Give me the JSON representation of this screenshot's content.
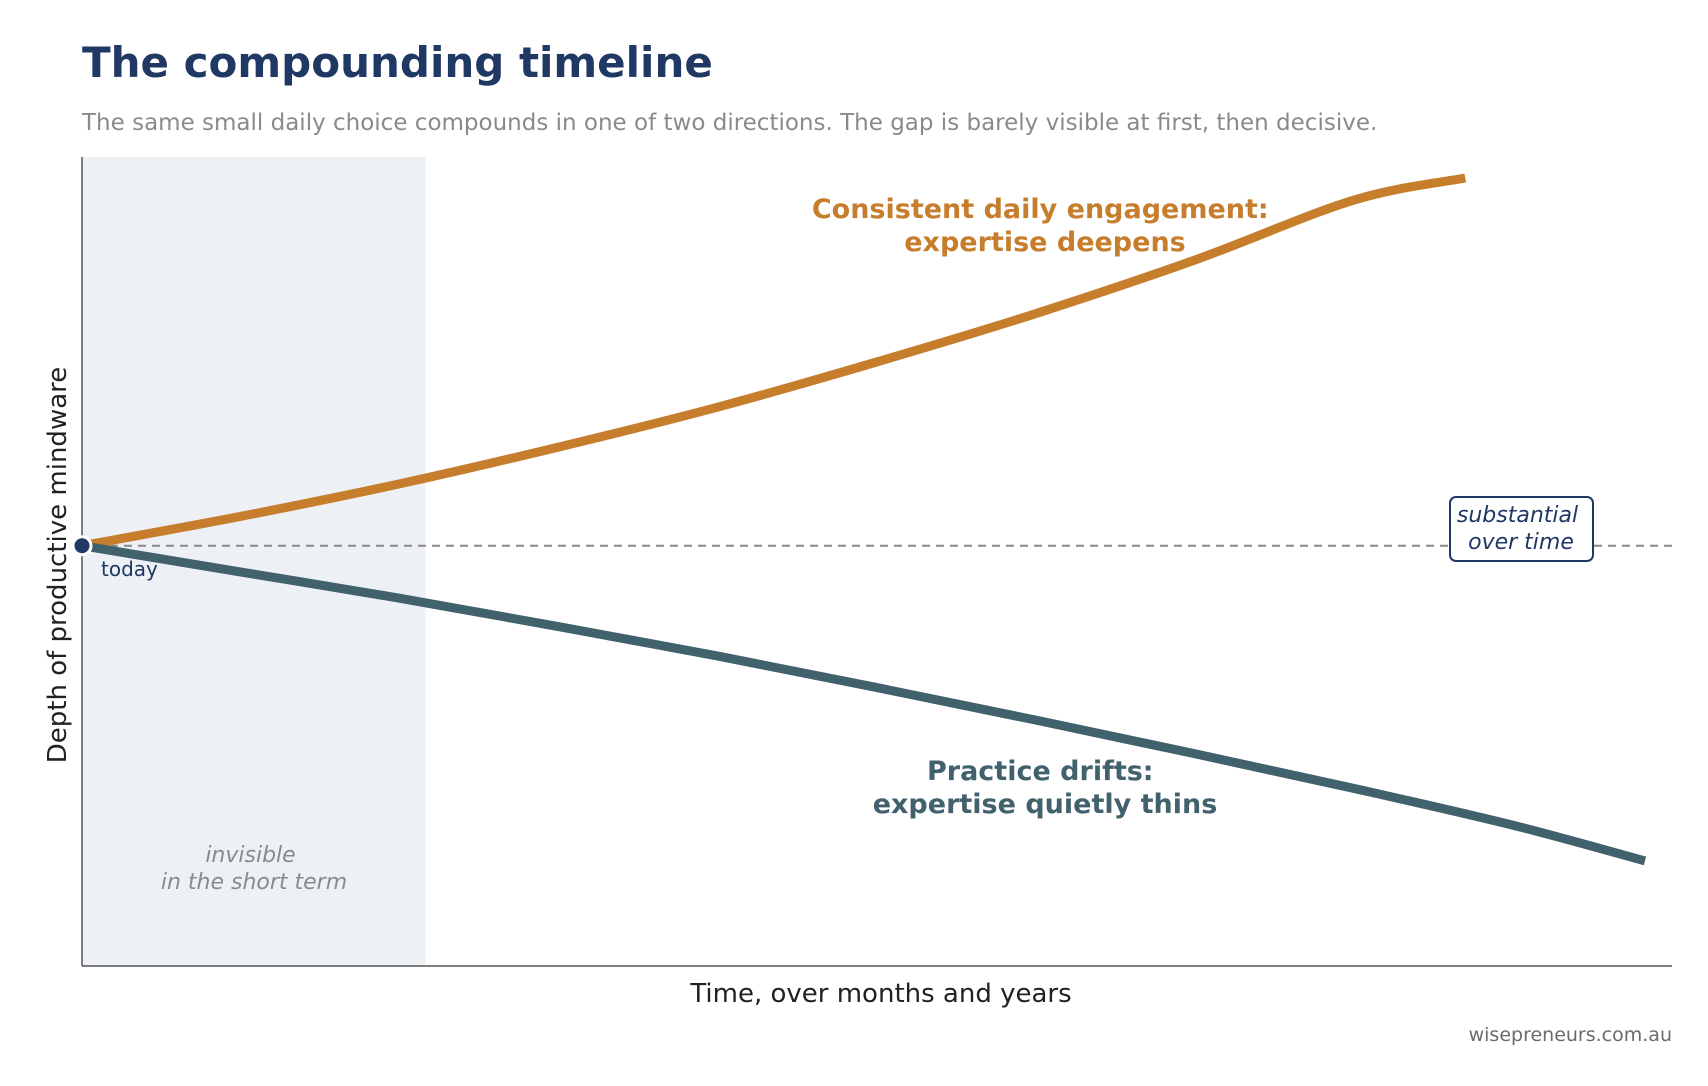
{
  "title": "The compounding timeline",
  "subtitle": "The same small daily choice compounds in one of two directions. The gap is barely visible at first, then decisive.",
  "footer": "wisepreneurs.com.au",
  "colors": {
    "title": "#1f3864",
    "engagement": "#c67d2c",
    "drift": "#41616d",
    "shade": "#edf0f5",
    "baseline": "#8a8a8a",
    "marker": "#1f3864"
  },
  "chart_data": {
    "type": "line",
    "title": "The compounding timeline",
    "xlabel": "Time, over months and years",
    "ylabel": "Depth of productive mindware",
    "xlim": [
      0,
      10
    ],
    "ylim": [
      -4,
      3.7
    ],
    "grid": false,
    "baseline": 0,
    "shaded_region": {
      "x": [
        0,
        2.16
      ],
      "label": [
        "invisible",
        "in the short term"
      ]
    },
    "series": [
      {
        "name": "Consistent daily engagement: expertise deepens",
        "label_lines": [
          "Consistent daily engagement:",
          "expertise deepens"
        ],
        "color": "#c67d2c",
        "x": [
          0,
          1,
          2,
          3,
          4,
          5,
          6,
          7,
          8,
          8.7
        ],
        "y": [
          0,
          0.28,
          0.59,
          0.94,
          1.32,
          1.75,
          2.21,
          2.72,
          3.29,
          3.5
        ]
      },
      {
        "name": "Practice drifts: expertise quietly thins",
        "label_lines": [
          "Practice drifts:",
          "expertise quietly thins"
        ],
        "color": "#41616d",
        "x": [
          0,
          1,
          2,
          3,
          4,
          5,
          6,
          7,
          8,
          9,
          9.83
        ],
        "y": [
          0,
          -0.25,
          -0.5,
          -0.77,
          -1.05,
          -1.35,
          -1.66,
          -1.98,
          -2.31,
          -2.66,
          -3.0
        ]
      }
    ],
    "annotations": {
      "start": "today",
      "gap": [
        "substantial",
        "over time"
      ]
    }
  }
}
